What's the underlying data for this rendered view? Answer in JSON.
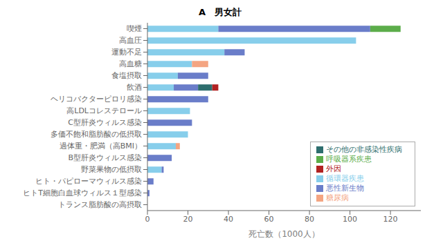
{
  "chart_data": {
    "type": "bar",
    "orientation": "horizontal",
    "stacked": true,
    "title": "A　男女計",
    "xlabel": "死亡数（1000人）",
    "categories": [
      "喫煙",
      "高血圧",
      "運動不足",
      "高血糖",
      "食塩摂取",
      "飲酒",
      "ヘリコバクターピロリ感染",
      "高LDLコレステロール",
      "C型肝炎ウィルス感染",
      "多価不飽和脂肪酸の低摂取",
      "過体重・肥満（高BMI）",
      "B型肝炎ウィルス感染",
      "野菜果物の低摂取",
      "ヒト・パピローマウィルス感染",
      "ヒトT細胞白血球ウィルス１型感染",
      "トランス脂肪酸の高摂取"
    ],
    "series": [
      {
        "name": "循環器疾患",
        "color": "#87CEEB",
        "values": [
          35,
          103,
          38,
          22,
          15,
          13,
          0,
          21,
          0,
          20,
          14,
          0,
          7,
          0,
          0,
          0
        ]
      },
      {
        "name": "悪性新生物",
        "color": "#6A7DC9",
        "values": [
          75,
          0,
          10,
          0,
          15,
          12,
          30,
          0,
          22,
          0,
          0,
          12,
          1,
          3,
          1,
          0
        ]
      },
      {
        "name": "糖尿病",
        "color": "#F4A582",
        "values": [
          0,
          0,
          0,
          8,
          0,
          0,
          0,
          0,
          0,
          0,
          2,
          0,
          0,
          0,
          0,
          0
        ]
      },
      {
        "name": "その他の非感染性疾病",
        "color": "#2E6E6E",
        "values": [
          0,
          0,
          0,
          0,
          0,
          7,
          0,
          0,
          0,
          0,
          0,
          0,
          0,
          0,
          0,
          0
        ]
      },
      {
        "name": "呼吸器系疾患",
        "color": "#5CAD4A",
        "values": [
          15,
          0,
          0,
          0,
          0,
          0,
          0,
          0,
          0,
          0,
          0,
          0,
          0,
          0,
          0,
          0
        ]
      },
      {
        "name": "外因",
        "color": "#B22222",
        "values": [
          0,
          0,
          0,
          0,
          0,
          3,
          0,
          0,
          0,
          0,
          0,
          0,
          0,
          0,
          0,
          0
        ]
      }
    ],
    "xlim": [
      0,
      135
    ],
    "xticks": [
      0,
      20,
      40,
      60,
      80,
      100,
      120
    ],
    "grid": false,
    "legend": "lower right"
  }
}
